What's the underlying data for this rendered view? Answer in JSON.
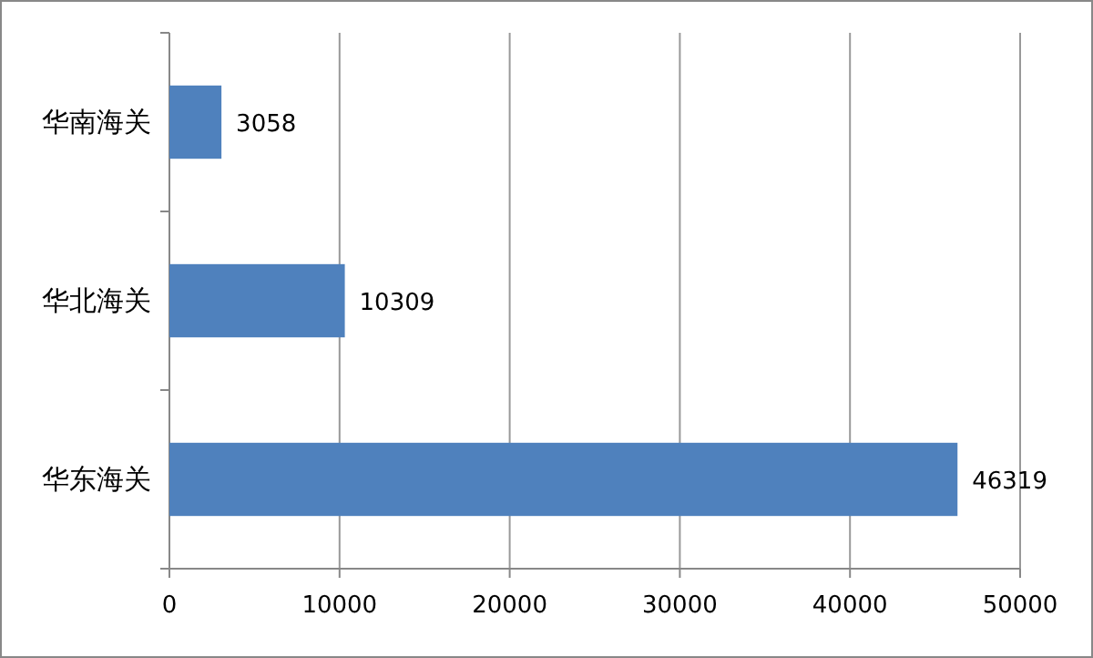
{
  "chart_data": {
    "type": "bar",
    "orientation": "horizontal",
    "categories": [
      "华南海关",
      "华北海关",
      "华东海关"
    ],
    "values": [
      3058,
      10309,
      46319
    ],
    "color": "#4f81bd",
    "xlim": [
      0,
      50000
    ],
    "xticks": [
      0,
      10000,
      20000,
      30000,
      40000,
      50000
    ],
    "grid": "x",
    "data_labels": true
  }
}
